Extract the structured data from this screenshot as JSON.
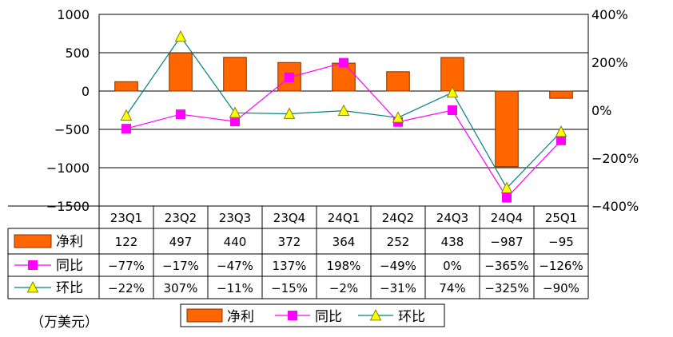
{
  "chart_data": {
    "type": "bar",
    "categories": [
      "23Q1",
      "23Q2",
      "23Q3",
      "23Q4",
      "24Q1",
      "24Q2",
      "24Q3",
      "24Q4",
      "25Q1"
    ],
    "ylim": [
      -1500,
      1000
    ],
    "y_ticks": [
      "1000",
      "500",
      "0",
      "-500",
      "-1000",
      "-1500"
    ],
    "y2lim": [
      -400,
      400
    ],
    "y2_ticks": [
      "400%",
      "200%",
      "0%",
      "-200%",
      "-400%"
    ],
    "grid": "horizontal",
    "unit_note": "（万美元）",
    "series": [
      {
        "name": "净利",
        "kind": "bar",
        "axis": "left",
        "values": [
          122,
          497,
          440,
          372,
          364,
          252,
          438,
          -987,
          -95
        ],
        "labels": [
          "122",
          "497",
          "440",
          "372",
          "364",
          "252",
          "438",
          "−987",
          "−95"
        ]
      },
      {
        "name": "同比",
        "kind": "line",
        "axis": "right",
        "marker": "square",
        "values": [
          -77,
          -17,
          -47,
          137,
          198,
          -49,
          0,
          -365,
          -126
        ],
        "labels": [
          "−77%",
          "−17%",
          "−47%",
          "137%",
          "198%",
          "−49%",
          "0%",
          "−365%",
          "−126%"
        ]
      },
      {
        "name": "环比",
        "kind": "line",
        "axis": "right",
        "marker": "triangle",
        "values": [
          -22,
          307,
          -11,
          -15,
          -2,
          -31,
          74,
          -325,
          -90
        ],
        "labels": [
          "−22%",
          "307%",
          "−11%",
          "−15%",
          "−2%",
          "−31%",
          "74%",
          "−325%",
          "−90%"
        ]
      }
    ],
    "legend": {
      "position": "bottom",
      "items": [
        "净利",
        "同比",
        "环比"
      ]
    }
  },
  "colors": {
    "bar_fill": "#ff6600",
    "bar_stroke": "#7f3300",
    "yoy_line": "#ff00ff",
    "yoy_marker": "#ff00ff",
    "qoq_line": "#008080",
    "qoq_marker": "#ffff00",
    "qoq_marker_stroke": "#808000"
  }
}
